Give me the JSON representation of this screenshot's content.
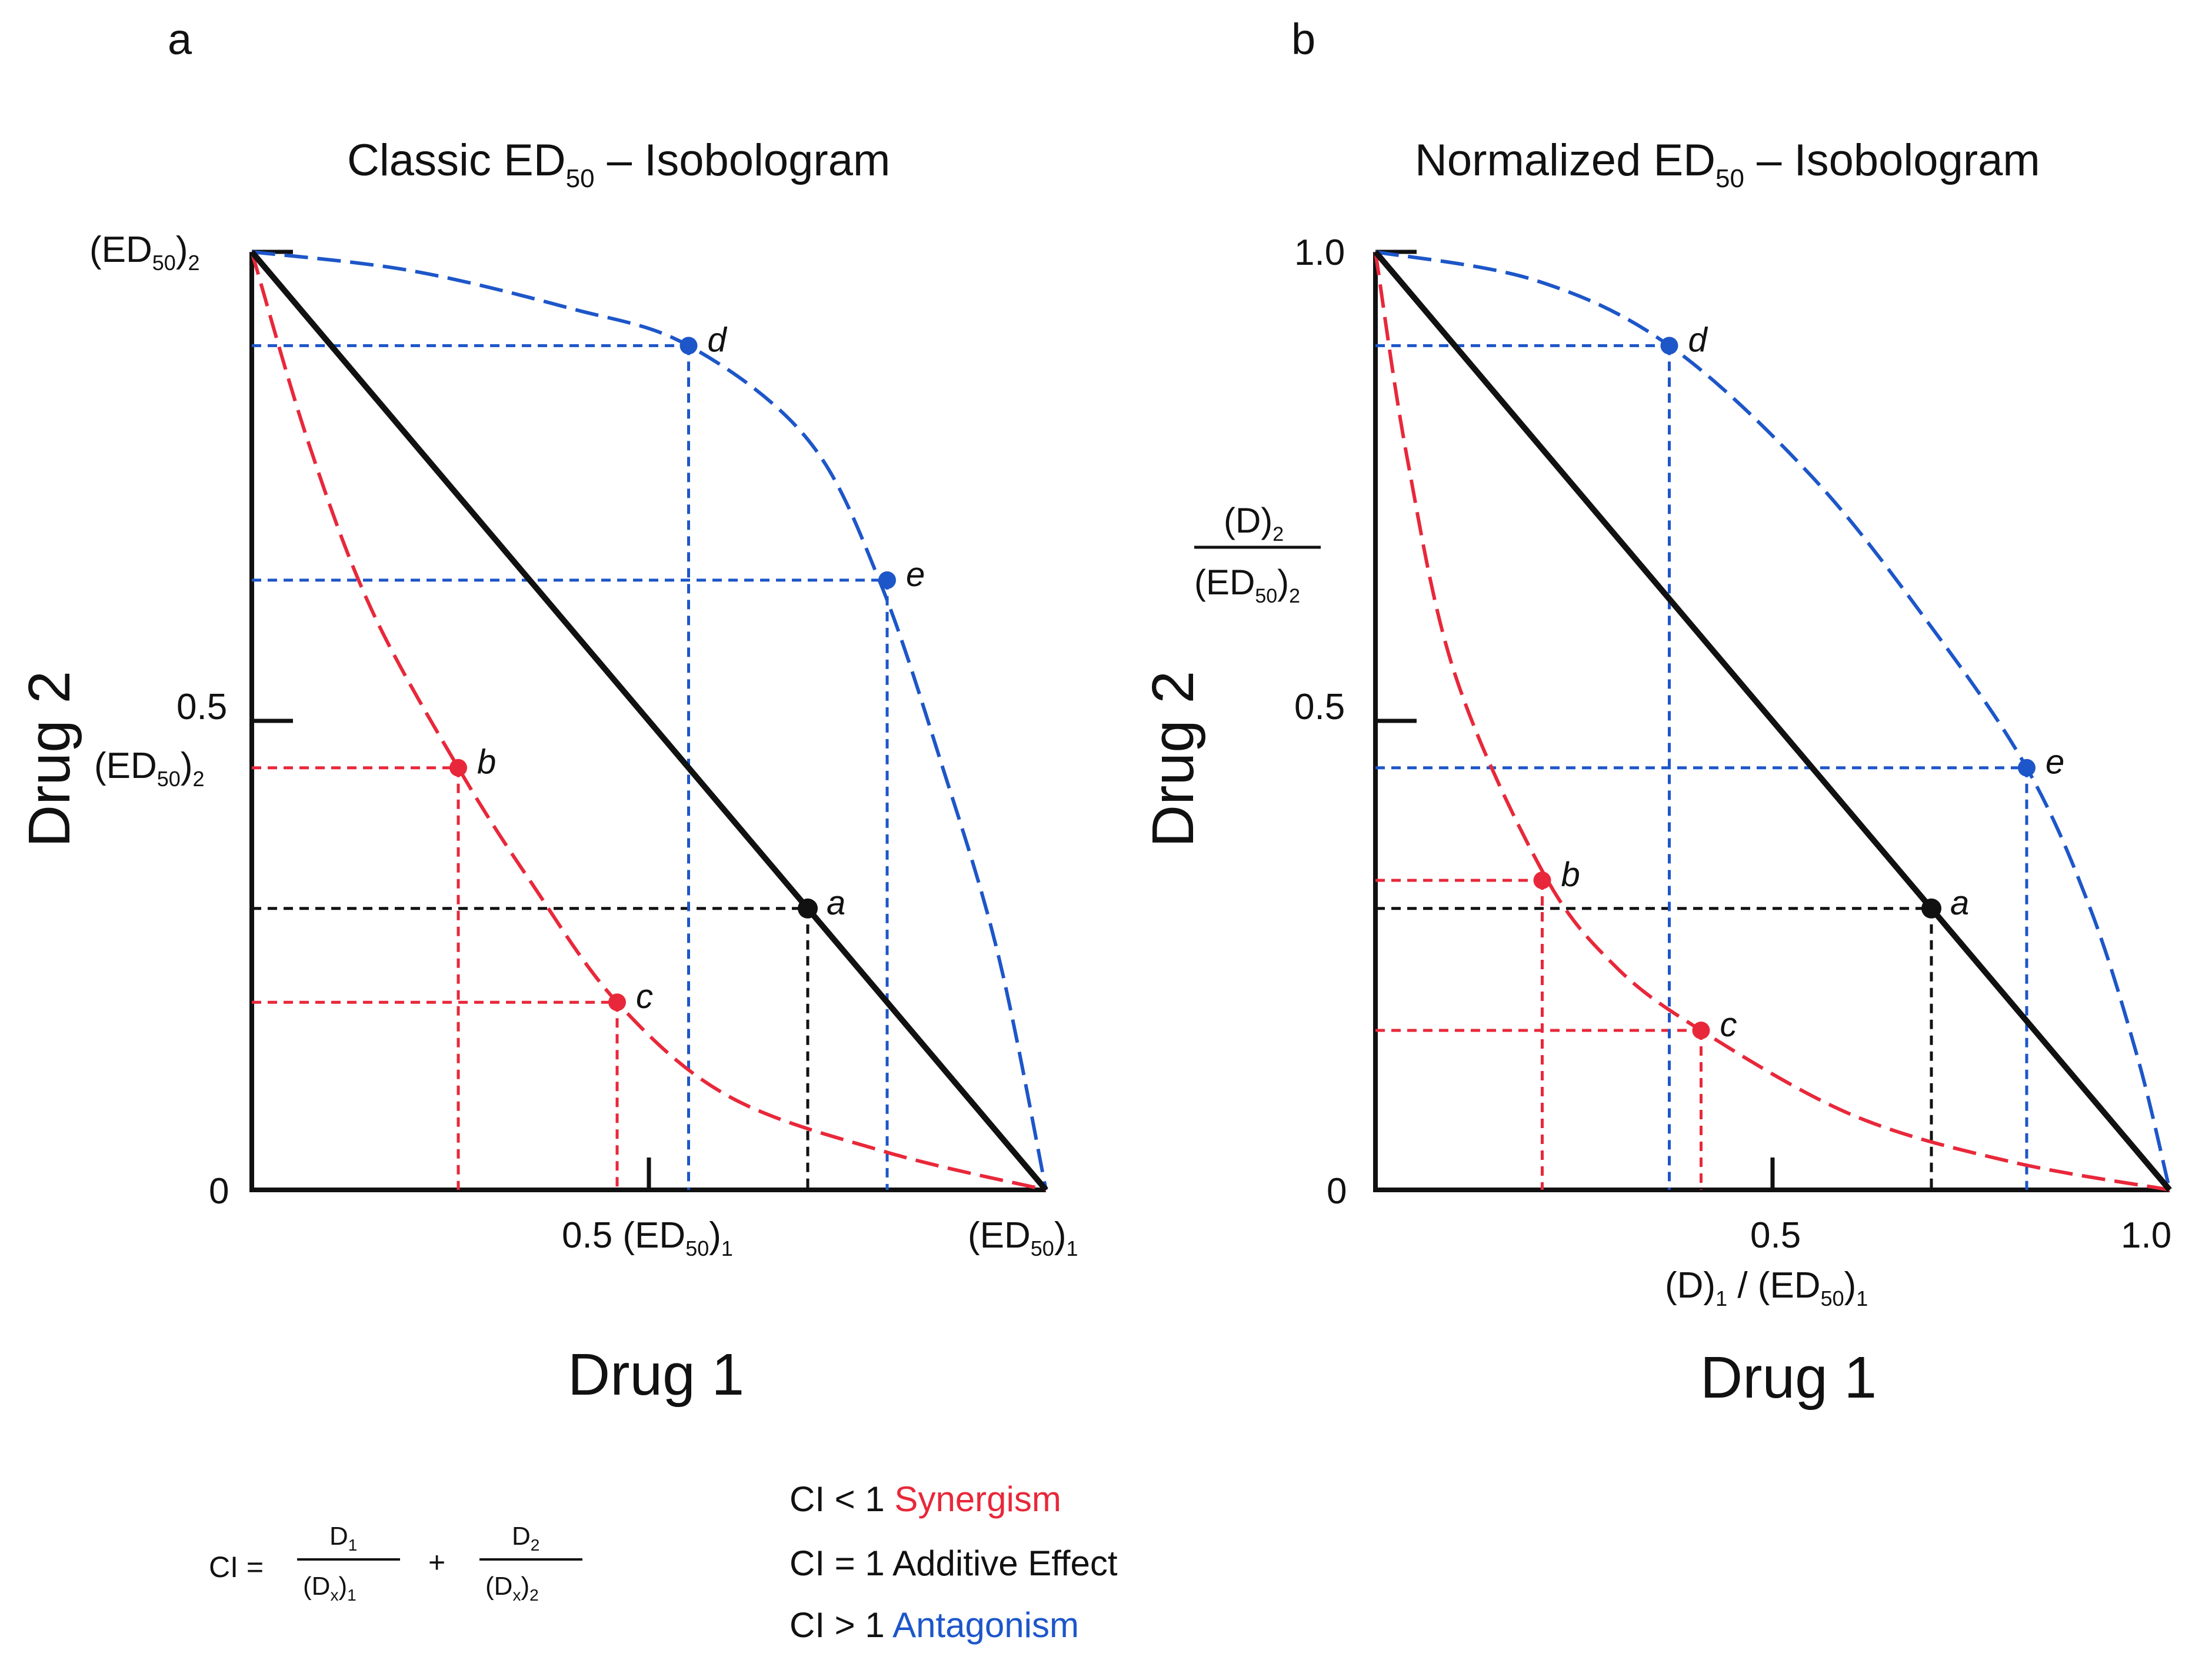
{
  "chart_data": [
    {
      "type": "isobologram",
      "panel_label": "a",
      "title": "Classic ED",
      "title_sub": "50",
      "title_suffix": " – Isobologram",
      "xlabel": "Drug 1",
      "ylabel": "Drug 2",
      "xlim": [
        0,
        1
      ],
      "ylim": [
        0,
        1
      ],
      "y_ticks": [
        {
          "value": 1.0,
          "label": "(ED",
          "sub": "50",
          "close": ")",
          "sub2": "2"
        },
        {
          "value": 0.5,
          "label": "0.5",
          "label2": "(ED",
          "sub": "50",
          "close": ")",
          "sub2": "2"
        },
        {
          "value": 0,
          "label": "0"
        }
      ],
      "x_ticks": [
        {
          "value": 0.5,
          "label": "0.5 (ED",
          "sub": "50",
          "close": ")",
          "sub2": "1"
        },
        {
          "value": 1.0,
          "label": "(ED",
          "sub": "50",
          "close": ")",
          "sub2": "1"
        }
      ],
      "additive_line": [
        [
          0,
          1
        ],
        [
          1,
          0
        ]
      ],
      "synergism_curve": [
        [
          0,
          1
        ],
        [
          0.07,
          0.8
        ],
        [
          0.15,
          0.62
        ],
        [
          0.26,
          0.45
        ],
        [
          0.35,
          0.33
        ],
        [
          0.46,
          0.2
        ],
        [
          0.6,
          0.1
        ],
        [
          0.8,
          0.04
        ],
        [
          1,
          0
        ]
      ],
      "antagonism_curve": [
        [
          0,
          1
        ],
        [
          0.2,
          0.98
        ],
        [
          0.4,
          0.94
        ],
        [
          0.55,
          0.9
        ],
        [
          0.7,
          0.8
        ],
        [
          0.79,
          0.65
        ],
        [
          0.87,
          0.45
        ],
        [
          0.94,
          0.25
        ],
        [
          1,
          0
        ]
      ],
      "points": [
        {
          "label": "a",
          "x": 0.7,
          "y": 0.3,
          "group": "additive"
        },
        {
          "label": "b",
          "x": 0.26,
          "y": 0.45,
          "group": "synergism"
        },
        {
          "label": "c",
          "x": 0.46,
          "y": 0.2,
          "group": "synergism"
        },
        {
          "label": "d",
          "x": 0.55,
          "y": 0.9,
          "group": "antagonism"
        },
        {
          "label": "e",
          "x": 0.8,
          "y": 0.65,
          "group": "antagonism"
        }
      ]
    },
    {
      "type": "isobologram",
      "panel_label": "b",
      "title": "Normalized ED",
      "title_sub": "50",
      "title_suffix": " – Isobologram",
      "xlabel": "Drug 1",
      "ylabel": "Drug 2",
      "x_axis_formula": {
        "num": "(D)",
        "num_sub": "1",
        "den": "(ED",
        "den_sub": "50",
        "den_close": ")",
        "den_sub2": "1"
      },
      "y_axis_formula": {
        "num": "(D)",
        "num_sub": "2",
        "den": "(ED",
        "den_sub": "50",
        "den_close": ")",
        "den_sub2": "2"
      },
      "xlim": [
        0,
        1
      ],
      "ylim": [
        0,
        1
      ],
      "y_ticks": [
        {
          "value": 1.0,
          "label": "1.0"
        },
        {
          "value": 0.5,
          "label": "0.5"
        },
        {
          "value": 0,
          "label": "0"
        }
      ],
      "x_ticks": [
        {
          "value": 0.5,
          "label": "0.5"
        },
        {
          "value": 1.0,
          "label": "1.0"
        }
      ],
      "additive_line": [
        [
          0,
          1
        ],
        [
          1,
          0
        ]
      ],
      "synergism_curve": [
        [
          0,
          1
        ],
        [
          0.04,
          0.78
        ],
        [
          0.1,
          0.55
        ],
        [
          0.21,
          0.34
        ],
        [
          0.3,
          0.24
        ],
        [
          0.41,
          0.17
        ],
        [
          0.6,
          0.08
        ],
        [
          0.8,
          0.03
        ],
        [
          1,
          0
        ]
      ],
      "antagonism_curve": [
        [
          0,
          1
        ],
        [
          0.2,
          0.97
        ],
        [
          0.37,
          0.9
        ],
        [
          0.55,
          0.76
        ],
        [
          0.7,
          0.6
        ],
        [
          0.82,
          0.45
        ],
        [
          0.9,
          0.3
        ],
        [
          0.96,
          0.14
        ],
        [
          1,
          0
        ]
      ],
      "points": [
        {
          "label": "a",
          "x": 0.7,
          "y": 0.3,
          "group": "additive"
        },
        {
          "label": "b",
          "x": 0.21,
          "y": 0.33,
          "group": "synergism"
        },
        {
          "label": "c",
          "x": 0.41,
          "y": 0.17,
          "group": "synergism"
        },
        {
          "label": "d",
          "x": 0.37,
          "y": 0.9,
          "group": "antagonism"
        },
        {
          "label": "e",
          "x": 0.82,
          "y": 0.45,
          "group": "antagonism"
        }
      ]
    }
  ],
  "formula": {
    "lhs": "CI =",
    "term1_num": "D",
    "term1_num_sub": "1",
    "term1_den": "(D",
    "term1_den_sub": "x",
    "term1_den_close": ")",
    "term1_den_sub2": "1",
    "plus": "+",
    "term2_num": "D",
    "term2_num_sub": "2",
    "term2_den": "(D",
    "term2_den_sub": "x",
    "term2_den_close": ")",
    "term2_den_sub2": "2"
  },
  "legend": [
    {
      "condition": "CI < 1",
      "effect": "Synergism",
      "color": "#e8283a"
    },
    {
      "condition": "CI = 1",
      "effect": "Additive Effect",
      "color": "#111111"
    },
    {
      "condition": "CI > 1",
      "effect": "Antagonism",
      "color": "#1d56c9"
    }
  ],
  "colors": {
    "synergism": "#e8283a",
    "additive": "#111111",
    "antagonism": "#1d56c9"
  }
}
